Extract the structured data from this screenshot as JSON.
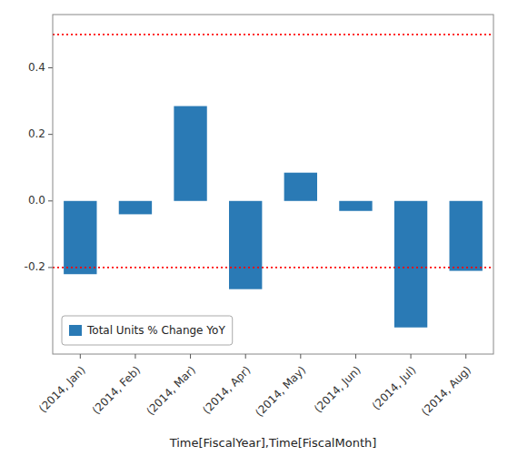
{
  "chart_data": {
    "type": "bar",
    "categories": [
      "(2014, Jan)",
      "(2014, Feb)",
      "(2014, Mar)",
      "(2014, Apr)",
      "(2014, May)",
      "(2014, Jun)",
      "(2014, Jul)",
      "(2014, Aug)"
    ],
    "series": [
      {
        "name": "Total Units % Change YoY",
        "color": "#2a7ab5",
        "values": [
          -0.22,
          -0.04,
          0.285,
          -0.265,
          0.085,
          -0.03,
          -0.38,
          -0.21
        ]
      }
    ],
    "x_label": "Time[FiscalYear],Time[FiscalMonth]",
    "ylim": [
      -0.46,
      0.56
    ],
    "yticks": [
      -0.2,
      {
        "value": 0.0,
        "label": "0.0"
      },
      0.2,
      0.4
    ],
    "reference_lines": [
      {
        "value": 0.5,
        "color": "red",
        "line_style": "dotted"
      },
      {
        "value": -0.2,
        "color": "red",
        "line_style": "dotted"
      }
    ],
    "grid": false,
    "legend": "lower left"
  }
}
